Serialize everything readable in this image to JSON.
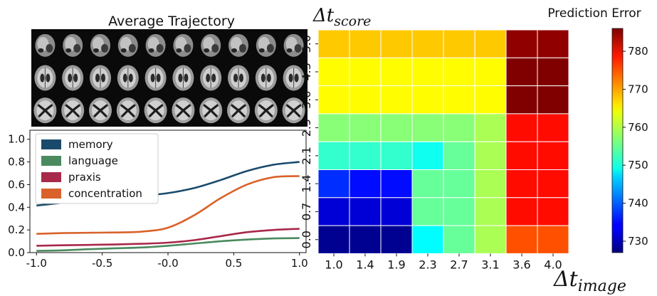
{
  "chart_data": [
    {
      "type": "line",
      "title": "Average Trajectory",
      "xlabel": "",
      "ylabel": "",
      "xlim": [
        -1.05,
        1.05
      ],
      "ylim": [
        0.0,
        1.08
      ],
      "x_ticks": [
        "-1.0",
        "-0.5",
        "-0.0",
        "0.5",
        "1.0"
      ],
      "x_tick_values": [
        -1.0,
        -0.5,
        0.0,
        0.5,
        1.0
      ],
      "y_ticks": [
        "0.0",
        "0.2",
        "0.4",
        "0.6",
        "0.8",
        "1.0"
      ],
      "y_tick_values": [
        0.0,
        0.2,
        0.4,
        0.6,
        0.8,
        1.0
      ],
      "legend_position": "top-left",
      "x": [
        -1.0,
        -0.8,
        -0.6,
        -0.4,
        -0.2,
        0.0,
        0.2,
        0.4,
        0.6,
        0.8,
        1.0
      ],
      "series": [
        {
          "name": "memory",
          "color": "#1a4a6b",
          "values": [
            0.415,
            0.44,
            0.46,
            0.48,
            0.5,
            0.525,
            0.57,
            0.64,
            0.72,
            0.775,
            0.8
          ]
        },
        {
          "name": "language",
          "color": "#4a8a5e",
          "values": [
            0.015,
            0.02,
            0.03,
            0.038,
            0.045,
            0.06,
            0.08,
            0.1,
            0.115,
            0.125,
            0.128
          ]
        },
        {
          "name": "praxis",
          "color": "#a8294a",
          "values": [
            0.06,
            0.065,
            0.068,
            0.072,
            0.078,
            0.088,
            0.11,
            0.145,
            0.18,
            0.2,
            0.21
          ]
        },
        {
          "name": "concentration",
          "color": "#d9622b",
          "values": [
            0.165,
            0.172,
            0.175,
            0.178,
            0.185,
            0.22,
            0.33,
            0.48,
            0.6,
            0.665,
            0.675
          ]
        }
      ],
      "image_strip": {
        "rows": 3,
        "cols": 10,
        "background": "#0a0a0a"
      }
    },
    {
      "type": "heatmap",
      "title": "Prediction Error",
      "xlabel_base": "Δt",
      "xlabel_sub": "image",
      "ylabel_base": "Δt",
      "ylabel_sub": "score",
      "x_ticks": [
        "1.0",
        "1.4",
        "1.9",
        "2.3",
        "2.7",
        "3.1",
        "3.6",
        "4.0"
      ],
      "y_ticks": [
        "0.0",
        "0.7",
        "1.4",
        "2.1",
        "2.9",
        "3.6",
        "4.3",
        "5.0"
      ],
      "colorbar": {
        "min": 727,
        "max": 786,
        "ticks": [
          730,
          740,
          750,
          760,
          770,
          780
        ],
        "colormap": "jet"
      },
      "values_top_row_first": [
        [
          767,
          767,
          767,
          767,
          767,
          767,
          785,
          785
        ],
        [
          764,
          764,
          764,
          764,
          764,
          764,
          787,
          787
        ],
        [
          764,
          764,
          764,
          764,
          764,
          764,
          787,
          787
        ],
        [
          757,
          757,
          757,
          757,
          757,
          759,
          778,
          778
        ],
        [
          752,
          752,
          752,
          750,
          755,
          759,
          778,
          778
        ],
        [
          737,
          735,
          735,
          755,
          755,
          759,
          778,
          778
        ],
        [
          732,
          732,
          732,
          755,
          755,
          759,
          778,
          778
        ],
        [
          728,
          728,
          728,
          749,
          755,
          759,
          774,
          774
        ]
      ]
    }
  ]
}
